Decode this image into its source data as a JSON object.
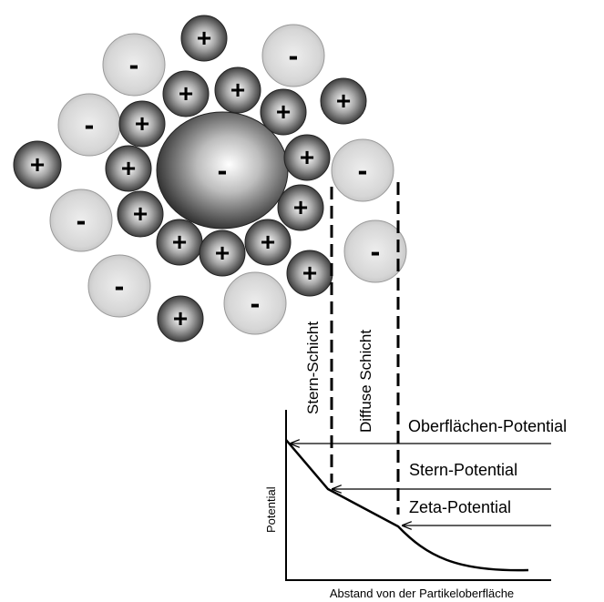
{
  "particle": {
    "core_charge": "-",
    "stern_ions": [
      "+",
      "+",
      "+",
      "+",
      "+",
      "+",
      "+",
      "+",
      "+",
      "+",
      "+",
      "+",
      "+"
    ],
    "diffuse_ions": [
      "+",
      "-",
      "-",
      "-",
      "-",
      "+",
      "-",
      "-",
      "-",
      "+",
      "+",
      "-",
      "-"
    ]
  },
  "layers": {
    "stern": "Stern-Schicht",
    "diffuse": "Diffuse Schicht"
  },
  "potentials": {
    "surface": "Oberflächen-Potential",
    "stern": "Stern-Potential",
    "zeta": "Zeta-Potential"
  },
  "graph": {
    "ylabel": "Potential",
    "xlabel": "Abstand von der Partikeloberfläche"
  },
  "colors": {
    "positive_ion": "#2f2f2f",
    "negative_ion": "#d4d4d4",
    "line": "#000000"
  }
}
